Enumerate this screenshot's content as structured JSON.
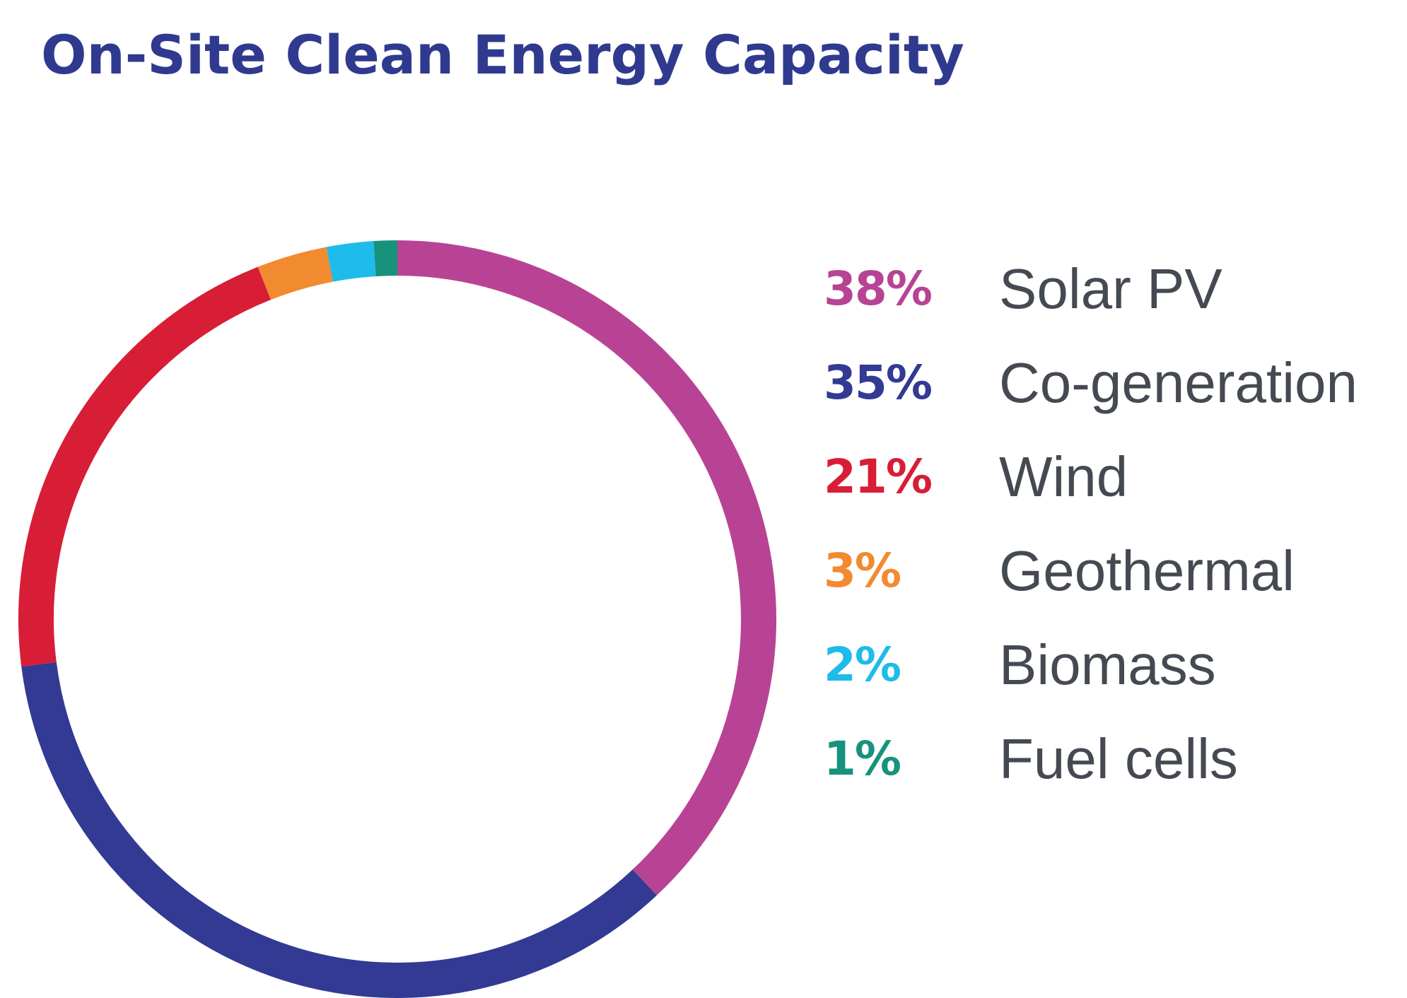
{
  "title": "On-Site Clean Energy Capacity",
  "chart_data": {
    "type": "pie",
    "style": "donut",
    "title": "On-Site Clean Energy Capacity",
    "legend_position": "right",
    "slices": [
      {
        "label": "Solar PV",
        "value": 38,
        "display": "38%",
        "color": "#b84394"
      },
      {
        "label": "Co-generation",
        "value": 35,
        "display": "35%",
        "color": "#323a93"
      },
      {
        "label": "Wind",
        "value": 21,
        "display": "21%",
        "color": "#d71e36"
      },
      {
        "label": "Geothermal",
        "value": 3,
        "display": "3%",
        "color": "#f28a30"
      },
      {
        "label": "Biomass",
        "value": 2,
        "display": "2%",
        "color": "#1fbbea"
      },
      {
        "label": "Fuel cells",
        "value": 1,
        "display": "1%",
        "color": "#16927d"
      }
    ]
  }
}
